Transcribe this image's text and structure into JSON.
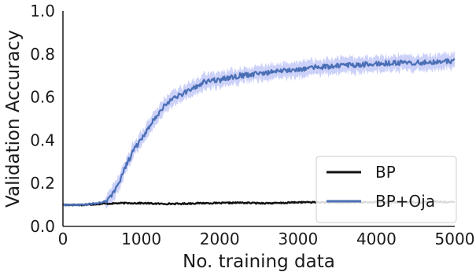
{
  "chart_data": {
    "type": "line",
    "title": "",
    "xlabel": "No. training data",
    "ylabel": "Validation Accuracy",
    "xlim": [
      0,
      5000
    ],
    "ylim": [
      0.0,
      1.0
    ],
    "xticks": [
      "0",
      "1000",
      "2000",
      "3000",
      "4000",
      "5000"
    ],
    "yticks": [
      "0.0",
      "0.2",
      "0.4",
      "0.6",
      "0.8",
      "1.0"
    ],
    "grid": false,
    "legend_position": "bottom-right",
    "series": [
      {
        "name": "BP",
        "color": "#111111",
        "x": [
          0,
          250,
          500,
          750,
          1000,
          1250,
          1500,
          1750,
          2000,
          2250,
          2500,
          2750,
          3000,
          3250,
          3500,
          3750,
          4000,
          4250,
          4500,
          4750,
          5000
        ],
        "y": [
          0.1,
          0.1,
          0.105,
          0.108,
          0.108,
          0.105,
          0.105,
          0.108,
          0.108,
          0.11,
          0.108,
          0.108,
          0.112,
          0.112,
          0.11,
          0.112,
          0.112,
          0.112,
          0.112,
          0.115,
          0.112
        ]
      },
      {
        "name": "BP+Oja",
        "color": "#4a6fb5",
        "band_color": "#aab2f5",
        "x": [
          0,
          250,
          500,
          600,
          700,
          800,
          900,
          1000,
          1100,
          1200,
          1300,
          1400,
          1500,
          1600,
          1700,
          1800,
          1900,
          2000,
          2250,
          2500,
          2750,
          3000,
          3250,
          3500,
          3750,
          4000,
          4250,
          4500,
          4750,
          5000
        ],
        "y": [
          0.1,
          0.1,
          0.11,
          0.13,
          0.19,
          0.28,
          0.35,
          0.41,
          0.46,
          0.52,
          0.56,
          0.59,
          0.61,
          0.63,
          0.65,
          0.67,
          0.68,
          0.68,
          0.7,
          0.71,
          0.72,
          0.73,
          0.74,
          0.745,
          0.75,
          0.755,
          0.76,
          0.76,
          0.765,
          0.765
        ]
      }
    ]
  }
}
